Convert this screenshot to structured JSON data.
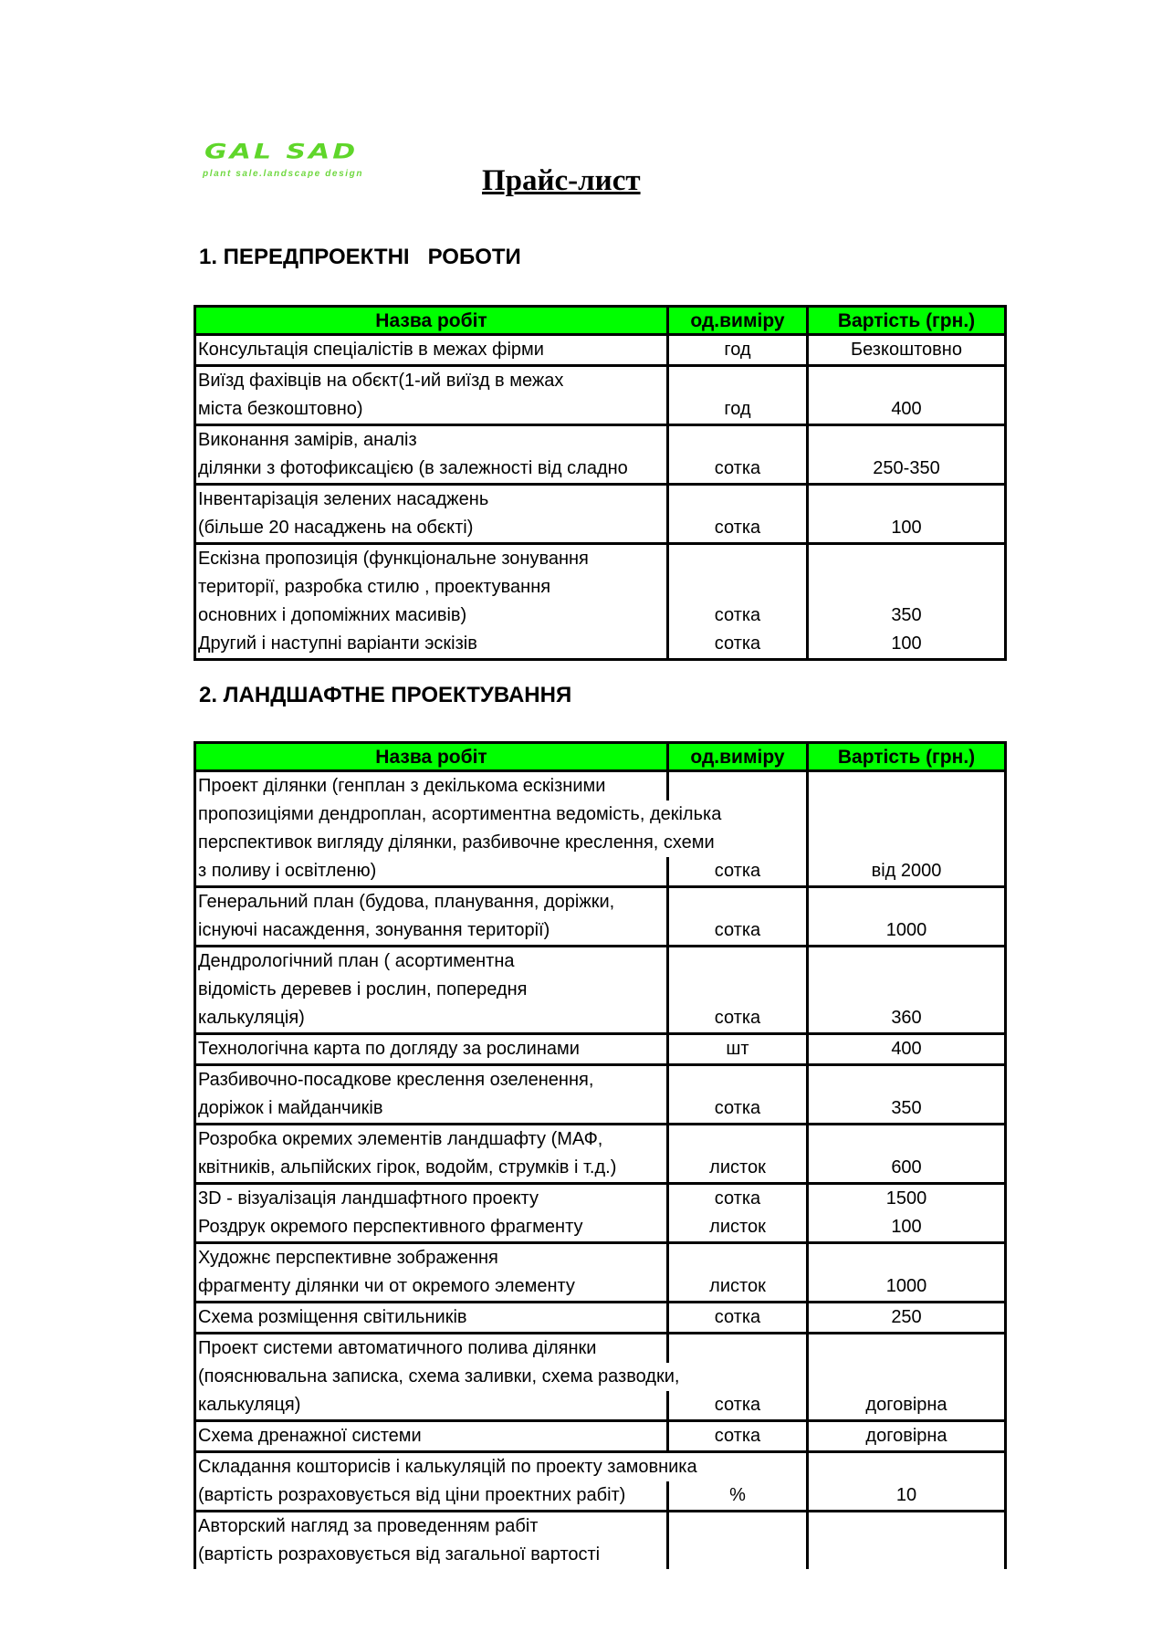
{
  "logo": {
    "main": "GAL SAD",
    "sub": "plant sale.landscape design",
    "color": "#5fd62a"
  },
  "title": "Прайс-лист",
  "header_color": "#00ff00",
  "sections": [
    {
      "heading": "1. ПЕРЕДПРОЕКТНІ   РОБОТИ",
      "columns": [
        "Назва робіт",
        "од.виміру",
        "Вартість (грн.)"
      ],
      "groups": [
        [
          {
            "lines": [
              "Консультація спеціалістів в межах фірми"
            ],
            "unit": "год",
            "price": "Безкоштовно"
          }
        ],
        [
          {
            "lines": [
              "Виїзд фахівців на обєкт(1-ий виїзд в межах",
              "міста безкоштовно)"
            ],
            "unit": "год",
            "price": "400"
          }
        ],
        [
          {
            "lines": [
              "Виконання замірів,  аналіз",
              " ділянки з фотофиксацією (в залежності від сладно"
            ],
            "unit": "сотка",
            "price": "250-350"
          }
        ],
        [
          {
            "lines": [
              "Інвентарізація зелених насаджень",
              "(більше 20 насаджень на обєкті)"
            ],
            "unit": "сотка",
            "price": "100"
          }
        ],
        [
          {
            "lines": [
              "Ескізна пропозиція (функціональне зонування",
              "території, разробка стилю , проектування",
              "основних і допоміжних  масивів)"
            ],
            "unit": "сотка",
            "price": "350"
          },
          {
            "lines": [
              "Другий і наступні варіанти эскізів"
            ],
            "unit": "сотка",
            "price": "100"
          }
        ]
      ]
    },
    {
      "heading": "2. ЛАНДШАФТНЕ ПРОЕКТУВАННЯ",
      "columns": [
        "Назва робіт",
        "од.виміру",
        "Вартість (грн.)"
      ],
      "groups": [
        [
          {
            "lines": [
              "Проект ділянки (генплан з декількома ескізними",
              "пропозиціями дендроплан, асортиментна ведомість, декілька",
              "перспективок вигляду ділянки, разбивочне креслення, схеми",
              "з поливу і освітленю)"
            ],
            "unit": "сотка",
            "price": "від 2000"
          }
        ],
        [
          {
            "lines": [
              "Генеральний план (будова, планування, доріжки,",
              "існуючі насаждення, зонування території)"
            ],
            "unit": "сотка",
            "price": "1000"
          }
        ],
        [
          {
            "lines": [
              "Дендрологічний план ( асортиментна",
              "відомість деревев і рослин, попередня",
              "калькуляція)"
            ],
            "unit": "сотка",
            "price": "360"
          }
        ],
        [
          {
            "lines": [
              "Технологічна карта по догляду за рослинами"
            ],
            "unit": "шт",
            "price": "400"
          }
        ],
        [
          {
            "lines": [
              "Разбивочно-посадкове креслення озеленення,",
              "доріжок і  майданчиків"
            ],
            "unit": "сотка",
            "price": "350"
          }
        ],
        [
          {
            "lines": [
              "Розробка окремих элементів ландшафту (МАФ,",
              "квітників, альпійских гірок, водойм, струмків і т.д.)"
            ],
            "unit": "листок",
            "price": "600"
          }
        ],
        [
          {
            "lines": [
              "3D - візуалізація ландшафтного проекту"
            ],
            "unit": "сотка",
            "price": "1500"
          },
          {
            "lines": [
              "Роздрук окремого перспективного фрагменту"
            ],
            "unit": "листок",
            "price": "100"
          }
        ],
        [
          {
            "lines": [
              "Художнє перспективне зображення",
              "фрагменту ділянки чи от окремого элементу"
            ],
            "unit": "листок",
            "price": "1000"
          }
        ],
        [
          {
            "lines": [
              "Схема розміщення світильників"
            ],
            "unit": "сотка",
            "price": "250"
          }
        ],
        [
          {
            "lines": [
              "Проект системи автоматичного полива ділянки",
              "(пояснювальна записка, схема заливки, схема разводки,",
              "калькуляця)"
            ],
            "unit": "сотка",
            "price": "договірна"
          }
        ],
        [
          {
            "lines": [
              "Схема дренажної системи"
            ],
            "unit": "сотка",
            "price": "договірна"
          }
        ],
        [
          {
            "lines": [
              "Складання кошторисів і калькуляцій по проекту замовника",
              "(вартість розраховується від ціни проектних рабіт)"
            ],
            "unit": "%",
            "price": "10"
          }
        ],
        [
          {
            "lines": [
              "Авторский нагляд за проведенням рабіт",
              "(вартість  розраховується від загальної вартості"
            ],
            "unit": "",
            "price": ""
          }
        ]
      ]
    }
  ]
}
